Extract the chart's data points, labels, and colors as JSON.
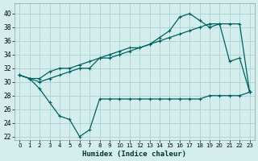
{
  "xlabel": "Humidex (Indice chaleur)",
  "bg_color": "#d4eeee",
  "grid_color": "#b0d4d4",
  "line_color": "#006060",
  "xlim": [
    -0.5,
    23.5
  ],
  "ylim": [
    21.5,
    41.5
  ],
  "xticks": [
    0,
    1,
    2,
    3,
    4,
    5,
    6,
    7,
    8,
    9,
    10,
    11,
    12,
    13,
    14,
    15,
    16,
    17,
    18,
    19,
    20,
    21,
    22,
    23
  ],
  "yticks": [
    22,
    24,
    26,
    28,
    30,
    32,
    34,
    36,
    38,
    40
  ],
  "line1_x": [
    0,
    1,
    2,
    3,
    4,
    5,
    6,
    7,
    8,
    9,
    10,
    11,
    12,
    13,
    14,
    15,
    16,
    17,
    18,
    19,
    20,
    21,
    22,
    23
  ],
  "line1_y": [
    31.0,
    30.5,
    29.0,
    27.0,
    25.0,
    24.5,
    22.0,
    23.0,
    27.5,
    27.5,
    27.5,
    27.5,
    27.5,
    27.5,
    27.5,
    27.5,
    27.5,
    27.5,
    27.5,
    28.0,
    28.0,
    28.0,
    28.0,
    28.5
  ],
  "line2_x": [
    0,
    1,
    2,
    3,
    4,
    5,
    6,
    7,
    8,
    9,
    10,
    11,
    12,
    13,
    14,
    15,
    16,
    17,
    18,
    19,
    20,
    21,
    22,
    23
  ],
  "line2_y": [
    31.0,
    30.5,
    30.0,
    30.5,
    31.0,
    31.5,
    32.0,
    32.0,
    33.5,
    34.0,
    34.5,
    35.0,
    35.0,
    35.5,
    36.5,
    37.5,
    39.5,
    40.0,
    39.0,
    38.0,
    38.5,
    33.0,
    33.5,
    28.5
  ],
  "line3_x": [
    0,
    1,
    2,
    3,
    4,
    5,
    6,
    7,
    8,
    9,
    10,
    11,
    12,
    13,
    14,
    15,
    16,
    17,
    18,
    19,
    20,
    21,
    22,
    23
  ],
  "line3_y": [
    31.0,
    30.5,
    30.5,
    31.5,
    32.0,
    32.0,
    32.5,
    33.0,
    33.5,
    33.5,
    34.0,
    34.5,
    35.0,
    35.5,
    36.0,
    36.5,
    37.0,
    37.5,
    38.0,
    38.5,
    38.5,
    38.5,
    38.5,
    28.5
  ]
}
